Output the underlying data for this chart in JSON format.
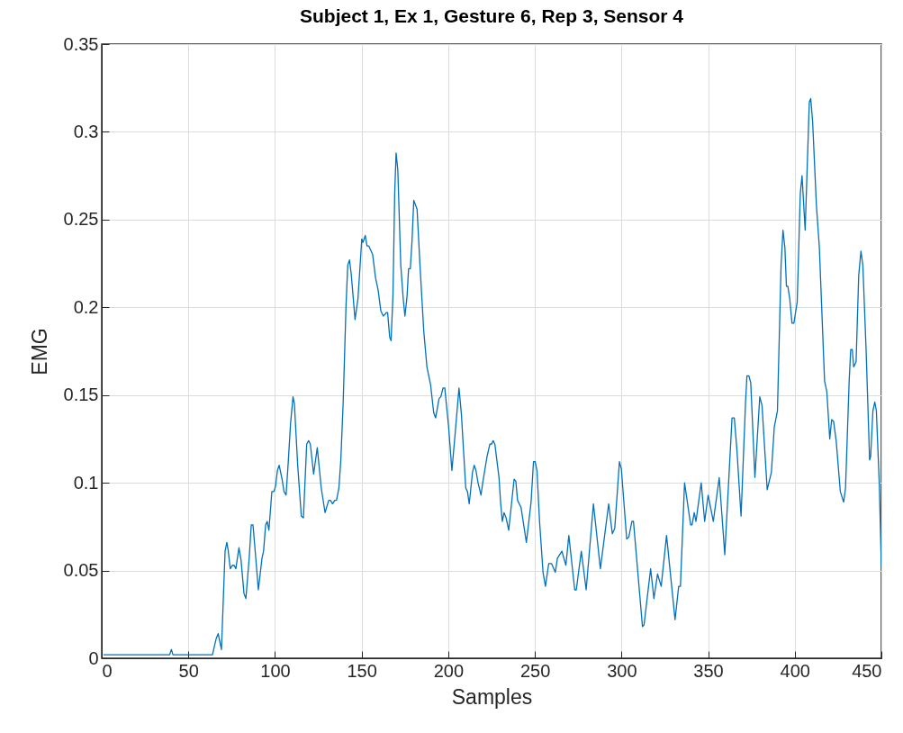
{
  "chart_data": {
    "type": "line",
    "title": "Subject 1, Ex 1, Gesture 6, Rep 3, Sensor 4",
    "xlabel": "Samples",
    "ylabel": "EMG",
    "x": [
      1,
      39.2,
      40.2,
      41.1,
      63.9,
      66,
      67.2,
      69.1,
      71.2,
      72.2,
      72.9,
      74.2,
      75.5,
      76.4,
      77.4,
      79.2,
      80.4,
      82.1,
      83.2,
      85.1,
      86.3,
      87.3,
      88.5,
      90.4,
      92.5,
      93.4,
      94.6,
      95.5,
      96.5,
      98.2,
      99.4,
      100.3,
      101.4,
      102.4,
      104.1,
      105.2,
      106.4,
      107.6,
      109,
      110.4,
      111.2,
      113.1,
      115.2,
      116.4,
      118.3,
      119.4,
      120.4,
      122.3,
      124.4,
      126.7,
      128.9,
      131,
      132,
      133.2,
      134.5,
      135.5,
      136.9,
      138,
      139.4,
      141,
      142,
      143,
      144,
      146.2,
      147.9,
      150.1,
      150.8,
      152.1,
      153.1,
      154.1,
      156.4,
      158,
      159.5,
      161.1,
      162.5,
      163.5,
      164.2,
      165,
      166.2,
      167,
      168.1,
      169.1,
      169.9,
      170.9,
      172.6,
      174,
      175,
      176.2,
      177.1,
      178.1,
      179.1,
      180.1,
      182,
      183.8,
      185.9,
      187.7,
      189.8,
      191.6,
      192.7,
      194.7,
      195.7,
      197,
      198,
      200.2,
      202.1,
      203.9,
      206.2,
      207.6,
      210.1,
      211.1,
      212.1,
      214,
      215,
      216,
      217.2,
      218.9,
      219.9,
      222.4,
      224,
      225,
      225.9,
      226.9,
      229.3,
      230.2,
      231.2,
      232.2,
      233.4,
      234.9,
      238,
      239,
      240,
      242,
      245.1,
      247.8,
      249.2,
      250.2,
      251.2,
      252.7,
      254.7,
      256.1,
      258,
      259.6,
      261.8,
      263,
      265.6,
      267.9,
      269.6,
      273,
      273.9,
      276.8,
      279.6,
      283.8,
      287.8,
      292.6,
      294.7,
      296.1,
      298.8,
      299.9,
      303,
      304.2,
      306,
      306.9,
      312.1,
      313,
      316.8,
      318.7,
      320.8,
      322.9,
      326,
      330.9,
      333,
      334,
      336.4,
      339.9,
      340.7,
      342,
      343,
      346,
      348,
      350,
      353,
      356.4,
      359.6,
      363.8,
      365.1,
      366.6,
      369,
      371.6,
      372.4,
      373.5,
      374.6,
      377,
      379.8,
      381.1,
      384.1,
      386.5,
      388.2,
      390,
      392.1,
      393.2,
      394.3,
      395.2,
      396,
      397.1,
      398.4,
      399.5,
      401.4,
      403.2,
      404.2,
      406,
      408.4,
      409.2,
      410.3,
      412.5,
      414.2,
      417.2,
      418.5,
      420.2,
      421.3,
      422.4,
      423.9,
      426.3,
      428.2,
      429.3,
      431.4,
      432.3,
      433.2,
      434,
      435.4,
      436.9,
      438.2,
      439.3,
      441.2,
      443.2,
      443.8,
      445.1,
      446.2,
      447.1,
      448.8,
      450
    ],
    "series": [
      {
        "color": "#0072bd",
        "values": [
          0.002,
          0.002,
          0.005,
          0.002,
          0.002,
          0.011,
          0.014,
          0.005,
          0.061,
          0.066,
          0.062,
          0.051,
          0.053,
          0.053,
          0.051,
          0.063,
          0.056,
          0.037,
          0.034,
          0.057,
          0.076,
          0.076,
          0.062,
          0.039,
          0.057,
          0.061,
          0.076,
          0.078,
          0.073,
          0.095,
          0.095,
          0.098,
          0.107,
          0.11,
          0.102,
          0.095,
          0.093,
          0.111,
          0.134,
          0.149,
          0.145,
          0.11,
          0.081,
          0.08,
          0.122,
          0.124,
          0.122,
          0.105,
          0.12,
          0.097,
          0.083,
          0.09,
          0.09,
          0.088,
          0.09,
          0.09,
          0.097,
          0.113,
          0.147,
          0.201,
          0.224,
          0.227,
          0.219,
          0.193,
          0.205,
          0.239,
          0.237,
          0.241,
          0.235,
          0.235,
          0.23,
          0.217,
          0.21,
          0.198,
          0.195,
          0.196,
          0.197,
          0.197,
          0.183,
          0.181,
          0.207,
          0.265,
          0.288,
          0.278,
          0.224,
          0.205,
          0.195,
          0.206,
          0.222,
          0.222,
          0.238,
          0.261,
          0.256,
          0.222,
          0.186,
          0.166,
          0.156,
          0.14,
          0.137,
          0.148,
          0.149,
          0.154,
          0.154,
          0.132,
          0.107,
          0.127,
          0.154,
          0.139,
          0.097,
          0.095,
          0.088,
          0.106,
          0.11,
          0.107,
          0.1,
          0.093,
          0.1,
          0.115,
          0.122,
          0.122,
          0.124,
          0.122,
          0.103,
          0.089,
          0.078,
          0.083,
          0.08,
          0.073,
          0.102,
          0.101,
          0.09,
          0.086,
          0.066,
          0.089,
          0.112,
          0.112,
          0.107,
          0.078,
          0.049,
          0.041,
          0.054,
          0.054,
          0.049,
          0.057,
          0.061,
          0.053,
          0.07,
          0.039,
          0.039,
          0.061,
          0.039,
          0.088,
          0.051,
          0.088,
          0.071,
          0.074,
          0.112,
          0.108,
          0.068,
          0.069,
          0.078,
          0.078,
          0.018,
          0.019,
          0.051,
          0.034,
          0.048,
          0.041,
          0.07,
          0.022,
          0.041,
          0.041,
          0.1,
          0.076,
          0.076,
          0.083,
          0.078,
          0.1,
          0.078,
          0.093,
          0.078,
          0.103,
          0.059,
          0.137,
          0.137,
          0.119,
          0.081,
          0.146,
          0.161,
          0.161,
          0.157,
          0.103,
          0.149,
          0.144,
          0.096,
          0.106,
          0.132,
          0.141,
          0.224,
          0.244,
          0.234,
          0.212,
          0.212,
          0.205,
          0.191,
          0.191,
          0.203,
          0.265,
          0.275,
          0.244,
          0.317,
          0.319,
          0.306,
          0.258,
          0.234,
          0.158,
          0.152,
          0.125,
          0.136,
          0.135,
          0.124,
          0.095,
          0.089,
          0.097,
          0.158,
          0.176,
          0.176,
          0.166,
          0.169,
          0.218,
          0.232,
          0.224,
          0.175,
          0.113,
          0.115,
          0.141,
          0.146,
          0.141,
          0.099,
          0.052
        ]
      }
    ],
    "xlim": [
      0,
      450
    ],
    "xticks": [
      0,
      50,
      100,
      150,
      200,
      250,
      300,
      350,
      400,
      450
    ],
    "ylim": [
      0,
      0.35
    ],
    "yticks": [
      0,
      0.05,
      0.1,
      0.15,
      0.2,
      0.25,
      0.3,
      0.35
    ],
    "grid": true,
    "line_style": "solid"
  }
}
